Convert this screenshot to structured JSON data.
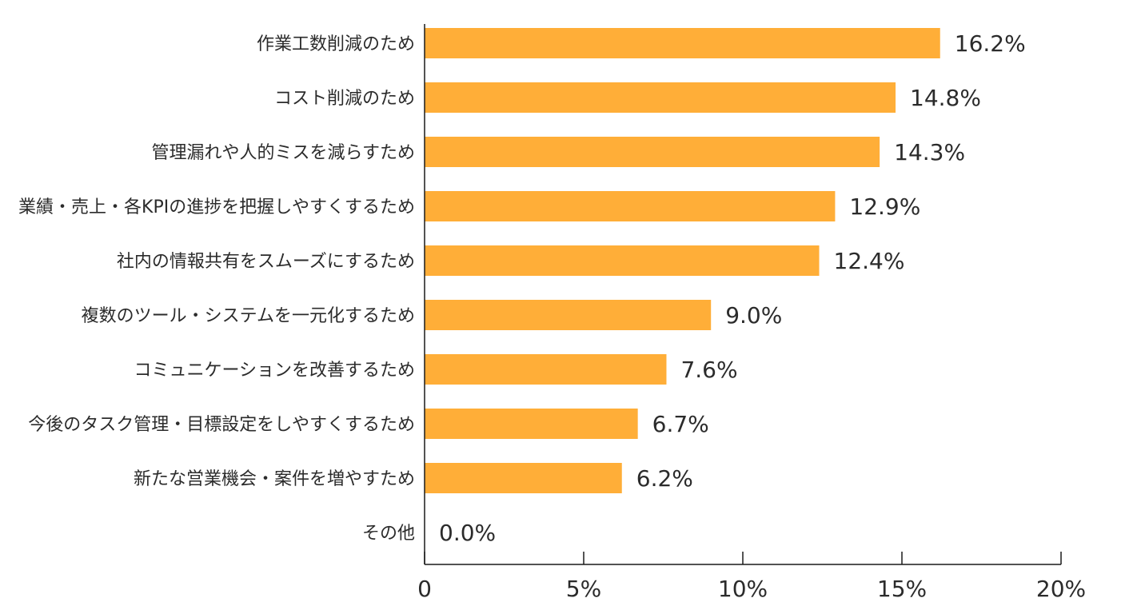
{
  "chart_data": {
    "type": "bar",
    "orientation": "horizontal",
    "title": "",
    "xlabel": "",
    "ylabel": "",
    "categories": [
      "作業工数削減のため",
      "コスト削減のため",
      "管理漏れや人的ミスを減らすため",
      "業績・売上・各KPIの進捗を把握しやすくするため",
      "社内の情報共有をスムーズにするため",
      "複数のツール・システムを一元化するため",
      "コミュニケーションを改善するため",
      "今後のタスク管理・目標設定をしやすくするため",
      "新たな営業機会・案件を増やすため",
      "その他"
    ],
    "values": [
      16.2,
      14.8,
      14.3,
      12.9,
      12.4,
      9.0,
      7.6,
      6.7,
      6.2,
      0.0
    ],
    "value_labels": [
      "16.2%",
      "14.8%",
      "14.3%",
      "12.9%",
      "12.4%",
      "9.0%",
      "7.6%",
      "6.7%",
      "6.2%",
      "0.0%"
    ],
    "xlim": [
      0,
      20
    ],
    "xticks": [
      0,
      5,
      10,
      15,
      20
    ],
    "xtick_labels": [
      "0",
      "5%",
      "10%",
      "15%",
      "20%"
    ],
    "grid": false,
    "legend": "none",
    "bar_color": "#FFAE38",
    "axis_color": "#1a1a1a"
  }
}
